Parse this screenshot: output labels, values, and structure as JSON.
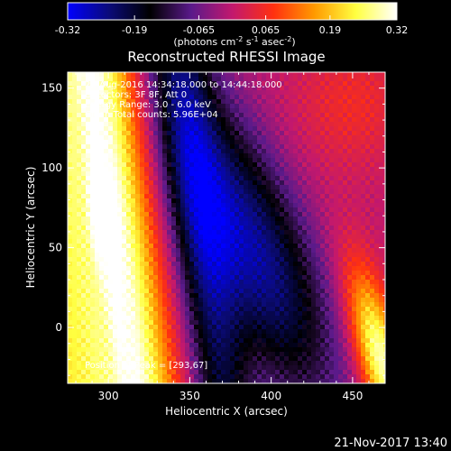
{
  "chart_data": {
    "type": "heatmap",
    "title": "Reconstructed RHESSI Image",
    "xlabel": "Heliocentric X (arcsec)",
    "ylabel": "Heliocentric Y (arcsec)",
    "xlim": [
      275,
      470
    ],
    "ylim": [
      -35,
      160
    ],
    "x_ticks": [
      300,
      350,
      400,
      450
    ],
    "y_ticks": [
      0,
      50,
      100,
      150
    ],
    "colorbar": {
      "range": [
        -0.32,
        0.32
      ],
      "ticks": [
        -0.32,
        -0.19,
        -0.065,
        0.065,
        0.19,
        0.32
      ],
      "tick_labels": [
        "-0.32",
        "-0.19",
        "-0.065",
        "0.065",
        "0.19",
        "0.32"
      ],
      "units_parts": [
        "(photons cm",
        "-2",
        " s",
        "-1",
        " asec",
        "-2",
        ")"
      ],
      "stops": [
        "#0000ff",
        "#0b0b7a",
        "#000000",
        "#5a1a8a",
        "#c2186e",
        "#ff3010",
        "#ff9a00",
        "#ffff40",
        "#ffffff"
      ]
    },
    "annotations": [
      "22-Aug-2016 14:34:18.000 to 14:44:18.000",
      "Detectors: 3F 8F, Att 0",
      "Energy Range: 3.0 - 6.0 keV",
      "Clean     Total counts: 5.96E+04"
    ],
    "peak_label": "Position of Peak = [293,67]",
    "peak": [
      293,
      67
    ],
    "grid": false
  },
  "timestamp": "21-Nov-2017 13:40"
}
